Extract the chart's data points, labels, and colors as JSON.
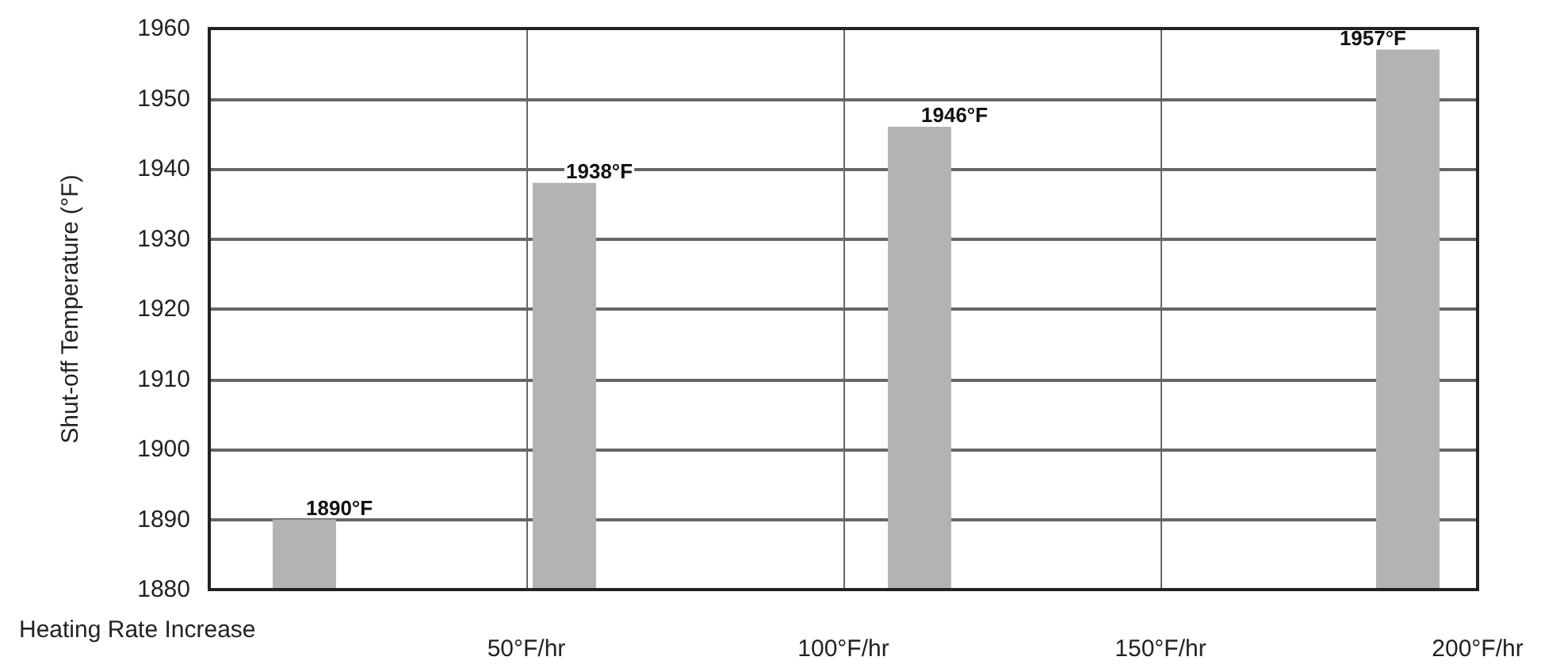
{
  "chart_data": {
    "type": "bar",
    "xlabel": "Heating Rate Increase",
    "ylabel": "Shut-off Temperature (°F)",
    "x": [
      15,
      56,
      112,
      189
    ],
    "values": [
      1890,
      1938,
      1946,
      1957
    ],
    "value_labels": [
      "1890°F",
      "1938°F",
      "1946°F",
      "1957°F"
    ],
    "color": "#b3b3b3",
    "xlim": [
      0,
      200
    ],
    "xticks": [
      {
        "value": 0,
        "label": null
      },
      {
        "value": 50,
        "label": "50°F/hr"
      },
      {
        "value": 100,
        "label": "100°F/hr"
      },
      {
        "value": 150,
        "label": "150°F/hr"
      },
      {
        "value": 200,
        "label": "200°F/hr"
      }
    ],
    "ylim": [
      1880,
      1960
    ],
    "yticks": [
      1880,
      1890,
      1900,
      1910,
      1920,
      1930,
      1940,
      1950,
      1960
    ],
    "grid": true
  }
}
